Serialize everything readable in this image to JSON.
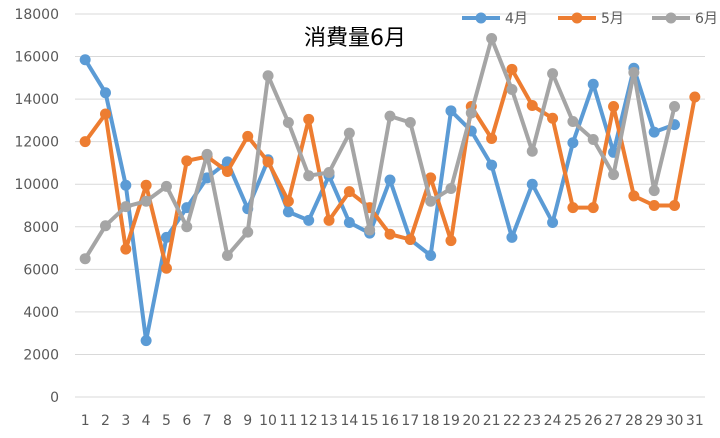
{
  "chart_data": {
    "type": "line",
    "title": "消費量6月",
    "xlabel": "",
    "ylabel": "",
    "ylim": [
      0,
      18000
    ],
    "yticks": [
      0,
      2000,
      4000,
      6000,
      8000,
      10000,
      12000,
      14000,
      16000,
      18000
    ],
    "x": [
      1,
      2,
      3,
      4,
      5,
      6,
      7,
      8,
      9,
      10,
      11,
      12,
      13,
      14,
      15,
      16,
      17,
      18,
      19,
      20,
      21,
      22,
      23,
      24,
      25,
      26,
      27,
      28,
      29,
      30,
      31
    ],
    "grid": "horizontal",
    "legend_position": "top-right",
    "series": [
      {
        "name": "4月",
        "color": "#5B9BD5",
        "values": [
          15850,
          14300,
          9950,
          2650,
          7500,
          8900,
          10300,
          11050,
          8850,
          11150,
          8700,
          8300,
          10400,
          8200,
          7700,
          10200,
          7400,
          6650,
          13450,
          12500,
          10900,
          7500,
          10000,
          8200,
          11950,
          14700,
          11500,
          15450,
          12450,
          12800,
          null
        ]
      },
      {
        "name": "5月",
        "color": "#ED7D31",
        "values": [
          12000,
          13300,
          6950,
          9950,
          6050,
          11100,
          11300,
          10600,
          12250,
          11050,
          9200,
          13050,
          8300,
          9650,
          8900,
          7650,
          7400,
          10300,
          7350,
          13650,
          12150,
          15400,
          13700,
          13100,
          8900,
          8900,
          13650,
          9450,
          9000,
          9000,
          14100
        ]
      },
      {
        "name": "6月",
        "color": "#A5A5A5",
        "values": [
          6500,
          8050,
          8950,
          9200,
          9900,
          8000,
          11400,
          6650,
          7750,
          15100,
          12900,
          10400,
          10550,
          12400,
          7850,
          13200,
          12900,
          9200,
          9800,
          13350,
          16850,
          14450,
          11550,
          15200,
          12950,
          12100,
          10450,
          15250,
          9700,
          13650,
          null
        ]
      }
    ]
  }
}
